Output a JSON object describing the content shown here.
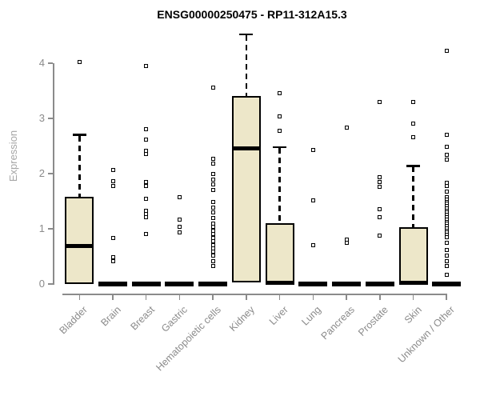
{
  "chart_data": {
    "type": "boxplot",
    "title": "ENSG00000250475 - RP11-312A15.3",
    "ylabel": "Expression",
    "xlabel": "",
    "ylim": [
      0,
      4.6
    ],
    "yticks": [
      0,
      1,
      2,
      3,
      4
    ],
    "grid": false,
    "legend": null,
    "categories": [
      "Bladder",
      "Brain",
      "Breast",
      "Gastric",
      "Hematopoietic cells",
      "Kidney",
      "Liver",
      "Lung",
      "Pancreas",
      "Prostate",
      "Skin",
      "Unknown / Other"
    ],
    "series": [
      {
        "name": "Bladder",
        "q1": 0.0,
        "median": 0.69,
        "q3": 1.58,
        "whisker_low": 0.0,
        "whisker_high": 2.7,
        "outliers": [
          4.02
        ]
      },
      {
        "name": "Brain",
        "q1": 0,
        "median": 0,
        "q3": 0,
        "whisker_low": 0,
        "whisker_high": 0,
        "outliers": [
          2.07,
          1.86,
          1.77,
          0.84,
          0.48,
          0.41
        ]
      },
      {
        "name": "Breast",
        "q1": 0,
        "median": 0,
        "q3": 0,
        "whisker_low": 0,
        "whisker_high": 0,
        "outliers": [
          3.95,
          2.8,
          2.62,
          2.42,
          2.36,
          1.85,
          1.78,
          1.55,
          1.33,
          1.27,
          1.21,
          0.9
        ]
      },
      {
        "name": "Gastric",
        "q1": 0,
        "median": 0,
        "q3": 0,
        "whisker_low": 0,
        "whisker_high": 0,
        "outliers": [
          1.57,
          1.16,
          1.03,
          0.94
        ]
      },
      {
        "name": "Hematopoietic cells",
        "q1": 0,
        "median": 0,
        "q3": 0,
        "whisker_low": 0,
        "whisker_high": 0,
        "outliers": [
          3.56,
          2.27,
          2.18,
          1.99,
          1.89,
          1.8,
          1.71,
          1.48,
          1.39,
          1.3,
          1.2,
          1.09,
          1.03,
          0.97,
          0.91,
          0.84,
          0.78,
          0.71,
          0.65,
          0.59,
          0.51,
          0.42,
          0.33
        ]
      },
      {
        "name": "Kidney",
        "q1": 0.03,
        "median": 2.46,
        "q3": 3.4,
        "whisker_low": 0.03,
        "whisker_high": 4.52,
        "outliers": []
      },
      {
        "name": "Liver",
        "q1": 0.0,
        "median": 0.02,
        "q3": 1.1,
        "whisker_low": 0.0,
        "whisker_high": 2.48,
        "outliers": [
          3.46,
          3.04,
          2.77
        ]
      },
      {
        "name": "Lung",
        "q1": 0,
        "median": 0,
        "q3": 0,
        "whisker_low": 0,
        "whisker_high": 0,
        "outliers": [
          2.43,
          1.52,
          0.7
        ]
      },
      {
        "name": "Pancreas",
        "q1": 0,
        "median": 0,
        "q3": 0,
        "whisker_low": 0,
        "whisker_high": 0,
        "outliers": [
          2.83,
          0.81,
          0.75
        ]
      },
      {
        "name": "Prostate",
        "q1": 0,
        "median": 0,
        "q3": 0,
        "whisker_low": 0,
        "whisker_high": 0,
        "outliers": [
          3.29,
          1.94,
          1.85,
          1.76,
          1.35,
          1.21,
          0.87
        ]
      },
      {
        "name": "Skin",
        "q1": 0.0,
        "median": 0.02,
        "q3": 1.03,
        "whisker_low": 0.0,
        "whisker_high": 2.14,
        "outliers": [
          3.29,
          2.9,
          2.66
        ]
      },
      {
        "name": "Unknown / Other",
        "q1": 0,
        "median": 0,
        "q3": 0,
        "whisker_low": 0,
        "whisker_high": 0,
        "outliers": [
          4.23,
          2.71,
          2.49,
          2.34,
          2.25,
          1.84,
          1.77,
          1.67,
          1.57,
          1.53,
          1.49,
          1.45,
          1.41,
          1.37,
          1.33,
          1.29,
          1.25,
          1.21,
          1.17,
          1.13,
          1.09,
          1.05,
          1.01,
          0.97,
          0.93,
          0.89,
          0.85,
          0.75,
          0.62,
          0.52,
          0.42,
          0.33,
          0.17
        ]
      }
    ],
    "colors": {
      "box_fill": "#EDE7C9",
      "box_border": "#000000",
      "axis": "#8B8B8B",
      "tick_label": "#8B8B8B",
      "axis_title": "#A6A6A6",
      "title": "#000000",
      "background": "#FFFFFF"
    }
  }
}
